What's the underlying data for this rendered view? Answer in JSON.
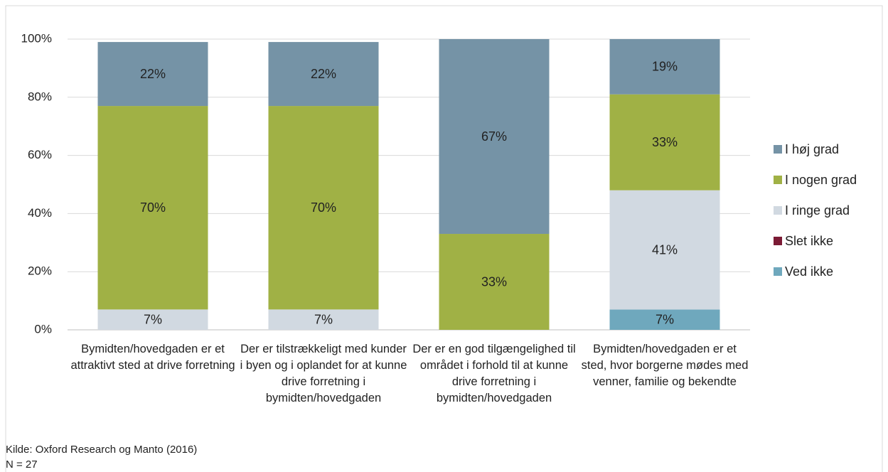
{
  "chart_data": {
    "type": "stacked_bar",
    "categories": [
      "Bymidten/hovedgaden er et attraktivt sted at drive forretning",
      "Der er tilstrækkeligt med kunder i byen og i oplandet for at kunne drive forretning i bymidten/hovedgaden",
      "Der er en god tilgængelighed til området i forhold til at kunne drive forretning i bymidten/hovedgaden",
      "Bymidten/hovedgaden er et sted, hvor borgerne mødes med venner, familie og bekendte"
    ],
    "series": [
      {
        "name": "I høj grad",
        "color": "#7593a6",
        "values": [
          22,
          22,
          67,
          19
        ],
        "value_labels": [
          "22%",
          "22%",
          "67%",
          "19%"
        ]
      },
      {
        "name": "I nogen grad",
        "color": "#a0b145",
        "values": [
          70,
          70,
          33,
          33
        ],
        "value_labels": [
          "70%",
          "70%",
          "33%",
          "33%"
        ]
      },
      {
        "name": "I ringe grad",
        "color": "#d1d9e1",
        "values": [
          7,
          7,
          0,
          41
        ],
        "value_labels": [
          "7%",
          "7%",
          null,
          "41%"
        ]
      },
      {
        "name": "Slet ikke",
        "color": "#7b1b35",
        "values": [
          0,
          0,
          0,
          0
        ],
        "value_labels": [
          null,
          null,
          null,
          null
        ]
      },
      {
        "name": "Ved ikke",
        "color": "#6fa8bd",
        "values": [
          0,
          0,
          0,
          7
        ],
        "value_labels": [
          null,
          null,
          null,
          "7%"
        ]
      }
    ],
    "ylim": [
      0,
      100
    ],
    "yticks": [
      {
        "value": 0,
        "label": "0%"
      },
      {
        "value": 20,
        "label": "20%"
      },
      {
        "value": 40,
        "label": "40%"
      },
      {
        "value": 60,
        "label": "60%"
      },
      {
        "value": 80,
        "label": "80%"
      },
      {
        "value": 100,
        "label": "100%"
      }
    ],
    "grid": true,
    "legend": "right",
    "source": "Kilde: Oxford Research og Manto (2016)",
    "note": "N = 27"
  }
}
